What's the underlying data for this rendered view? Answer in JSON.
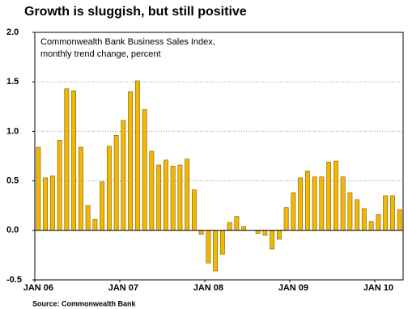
{
  "chart_data": {
    "type": "bar",
    "title": "Growth is sluggish, but still positive",
    "subtitle": [
      "Commonwealth Bank Business Sales Index,",
      "monthly trend change, percent"
    ],
    "source": "Source: Commonwealth Bank",
    "categories": [
      "JAN 06",
      null,
      null,
      null,
      null,
      null,
      null,
      null,
      null,
      null,
      null,
      null,
      "JAN 07",
      null,
      null,
      null,
      null,
      null,
      null,
      null,
      null,
      null,
      null,
      null,
      "JAN 08",
      null,
      null,
      null,
      null,
      null,
      null,
      null,
      null,
      null,
      null,
      null,
      "JAN 09",
      null,
      null,
      null,
      null,
      null,
      null,
      null,
      null,
      null,
      null,
      null,
      "JAN 10",
      null,
      null,
      null
    ],
    "values": [
      0.84,
      0.53,
      0.55,
      0.91,
      1.43,
      1.41,
      0.84,
      0.25,
      0.11,
      0.49,
      0.85,
      0.96,
      1.11,
      1.4,
      1.51,
      1.22,
      0.8,
      0.66,
      0.71,
      0.65,
      0.66,
      0.72,
      0.41,
      -0.04,
      -0.33,
      -0.41,
      -0.24,
      0.08,
      0.14,
      0.04,
      0.0,
      -0.03,
      -0.05,
      -0.19,
      -0.09,
      0.23,
      0.38,
      0.53,
      0.6,
      0.54,
      0.54,
      0.69,
      0.7,
      0.54,
      0.38,
      0.31,
      0.22,
      0.09,
      0.16,
      0.35,
      0.35,
      0.21
    ],
    "color": "#f2b705",
    "ylim": [
      -0.5,
      2.0
    ],
    "yticks": [
      -0.5,
      {
        "value": 0,
        "label": "0.0"
      },
      0.5,
      {
        "value": 1,
        "label": "1.0"
      },
      1.5,
      {
        "value": 2,
        "label": "2.0"
      }
    ],
    "grid": true
  }
}
